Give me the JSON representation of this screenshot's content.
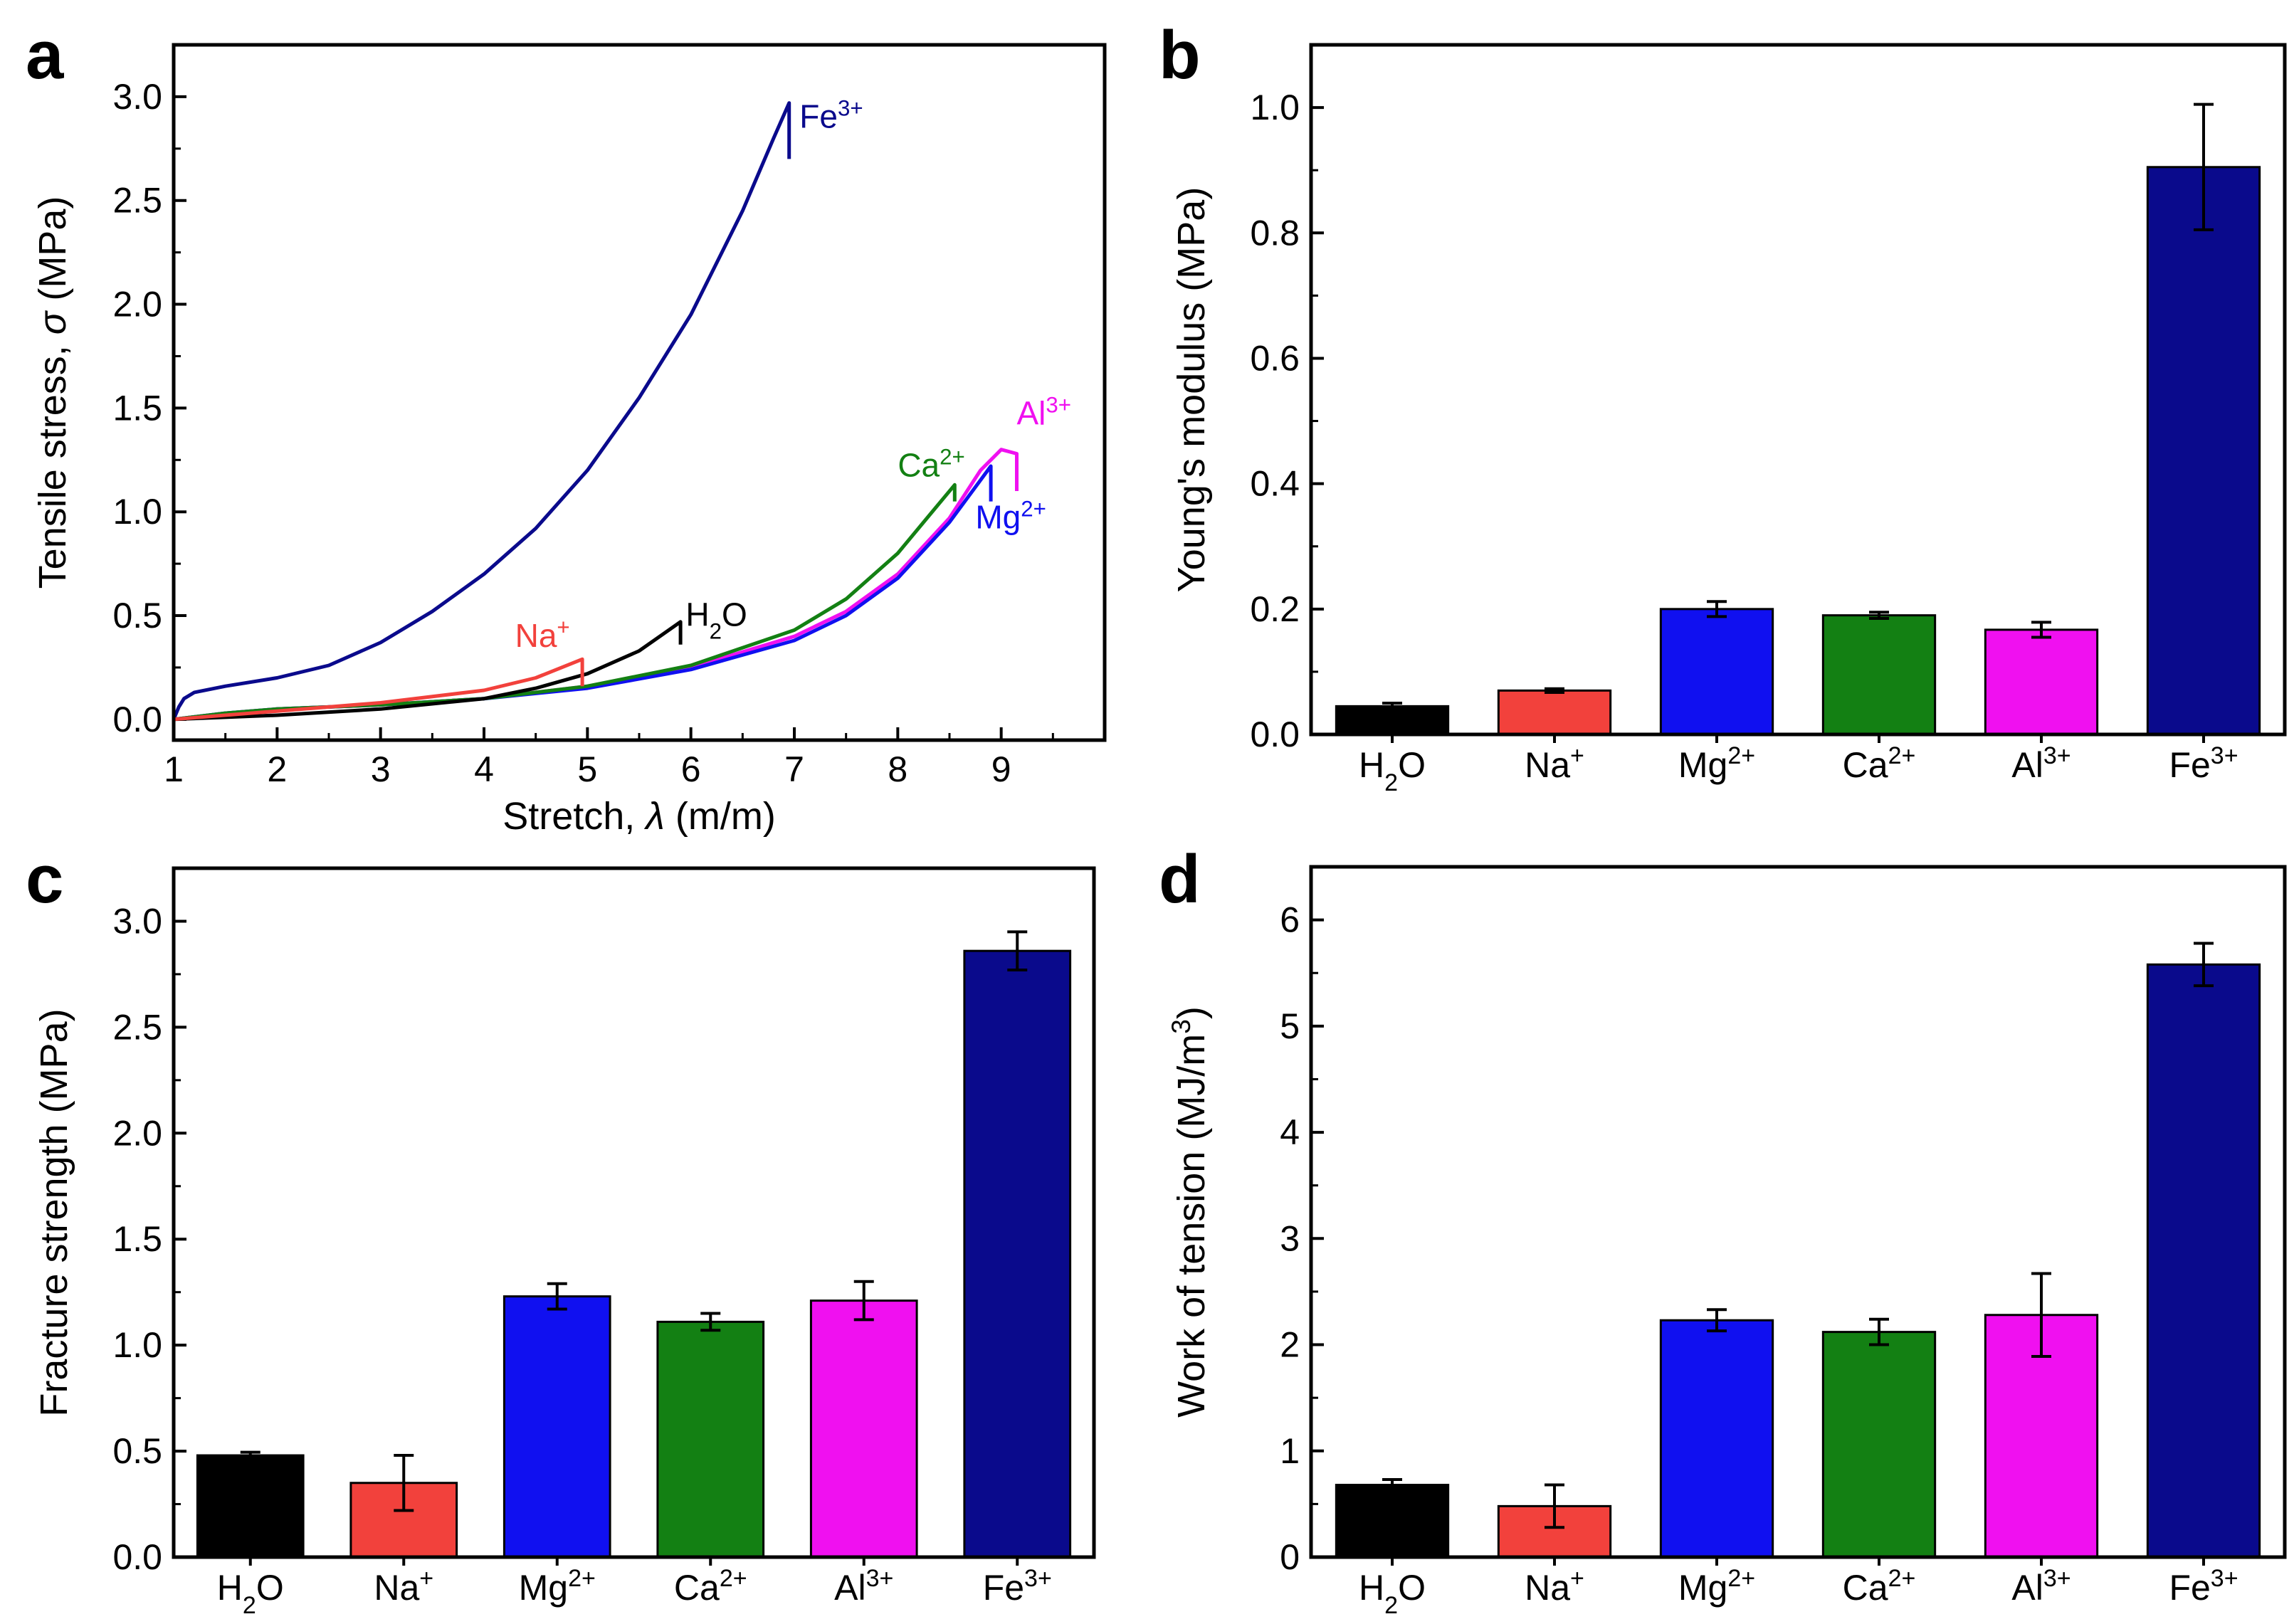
{
  "figure": {
    "colors": {
      "H2O": "#000000",
      "Na": "#f2413c",
      "Mg": "#1010f0",
      "Ca": "#138013",
      "Al": "#f010f0",
      "Fe": "#0a0a8c"
    }
  },
  "chart_data": [
    {
      "panel": "a",
      "type": "line",
      "xlabel_prefix": "Stretch, ",
      "xlabel_symbol": "λ",
      "xlabel_suffix": " (m/m)",
      "ylabel_prefix": "Tensile stress, ",
      "ylabel_symbol": "σ",
      "ylabel_suffix": " (MPa)",
      "xlim": [
        1,
        10
      ],
      "ylim": [
        -0.1,
        3.25
      ],
      "xticks": [
        1,
        2,
        3,
        4,
        5,
        6,
        7,
        8,
        9
      ],
      "xtick_labels": [
        "1",
        "2",
        "3",
        "4",
        "5",
        "6",
        "7",
        "8",
        "9"
      ],
      "yticks": [
        0.0,
        0.5,
        1.0,
        1.5,
        2.0,
        2.5,
        3.0
      ],
      "ytick_labels": [
        "0.0",
        "0.5",
        "1.0",
        "1.5",
        "2.0",
        "2.5",
        "3.0"
      ],
      "series": [
        {
          "key": "Fe",
          "name": "Fe3+",
          "label_base": "Fe",
          "label_sup": "3+",
          "color": "#0a0a8c",
          "x": [
            1.0,
            1.05,
            1.1,
            1.2,
            1.5,
            2.0,
            2.5,
            3.0,
            3.5,
            4.0,
            4.5,
            5.0,
            5.5,
            6.0,
            6.5,
            6.8,
            6.95
          ],
          "y": [
            0.0,
            0.06,
            0.1,
            0.13,
            0.16,
            0.2,
            0.26,
            0.37,
            0.52,
            0.7,
            0.92,
            1.2,
            1.55,
            1.95,
            2.45,
            2.8,
            2.97
          ],
          "drop_to": 2.7,
          "label_at": [
            7.05,
            2.85
          ]
        },
        {
          "key": "Al",
          "name": "Al3+",
          "label_base": "Al",
          "label_sup": "3+",
          "color": "#f010f0",
          "x": [
            1.0,
            1.5,
            2.0,
            3.0,
            4.0,
            5.0,
            6.0,
            7.0,
            7.5,
            8.0,
            8.5,
            8.8,
            9.0,
            9.15
          ],
          "y": [
            0.0,
            0.03,
            0.05,
            0.07,
            0.1,
            0.16,
            0.25,
            0.4,
            0.52,
            0.7,
            0.97,
            1.2,
            1.3,
            1.28
          ],
          "drop_to": 1.1,
          "label_at": [
            9.15,
            1.42
          ]
        },
        {
          "key": "Mg",
          "name": "Mg2+",
          "label_base": "Mg",
          "label_sup": "2+",
          "color": "#1010f0",
          "x": [
            1.0,
            1.5,
            2.0,
            3.0,
            4.0,
            5.0,
            6.0,
            7.0,
            7.5,
            8.0,
            8.5,
            8.9
          ],
          "y": [
            0.0,
            0.03,
            0.05,
            0.07,
            0.1,
            0.15,
            0.24,
            0.38,
            0.5,
            0.68,
            0.95,
            1.22
          ],
          "drop_to": 1.05,
          "label_at": [
            8.75,
            0.92
          ]
        },
        {
          "key": "Ca",
          "name": "Ca2+",
          "label_base": "Ca",
          "label_sup": "2+",
          "color": "#138013",
          "x": [
            1.0,
            1.5,
            2.0,
            3.0,
            4.0,
            5.0,
            6.0,
            7.0,
            7.5,
            8.0,
            8.3,
            8.55
          ],
          "y": [
            0.0,
            0.03,
            0.05,
            0.07,
            0.1,
            0.16,
            0.26,
            0.43,
            0.58,
            0.8,
            0.98,
            1.13
          ],
          "drop_to": 1.05,
          "label_at": [
            8.0,
            1.17
          ]
        },
        {
          "key": "H2O",
          "name": "H2O",
          "label_base": "H",
          "label_sub": "2",
          "label_tail": "O",
          "color": "#000000",
          "x": [
            1.0,
            2.0,
            3.0,
            4.0,
            4.5,
            5.0,
            5.5,
            5.9
          ],
          "y": [
            0.0,
            0.02,
            0.05,
            0.1,
            0.15,
            0.22,
            0.33,
            0.47
          ],
          "drop_to": 0.36,
          "label_at": [
            5.95,
            0.45
          ]
        },
        {
          "key": "Na",
          "name": "Na+",
          "label_base": "Na",
          "label_sup": "+",
          "color": "#f2413c",
          "x": [
            1.0,
            2.0,
            3.0,
            4.0,
            4.5,
            4.95
          ],
          "y": [
            0.0,
            0.04,
            0.08,
            0.14,
            0.2,
            0.29
          ],
          "drop_to": 0.16,
          "label_at": [
            4.3,
            0.35
          ]
        }
      ]
    },
    {
      "panel": "b",
      "type": "bar",
      "ylabel": "Young's modulus (MPa)",
      "ylim": [
        0,
        1.1
      ],
      "yticks": [
        0.0,
        0.2,
        0.4,
        0.6,
        0.8,
        1.0
      ],
      "ytick_labels": [
        "0.0",
        "0.2",
        "0.4",
        "0.6",
        "0.8",
        "1.0"
      ],
      "categories": [
        "H2O",
        "Na+",
        "Mg2+",
        "Ca2+",
        "Al3+",
        "Fe3+"
      ],
      "category_labels": [
        {
          "base": "H",
          "sub": "2",
          "tail": "O"
        },
        {
          "base": "Na",
          "sup": "+"
        },
        {
          "base": "Mg",
          "sup": "2+"
        },
        {
          "base": "Ca",
          "sup": "2+"
        },
        {
          "base": "Al",
          "sup": "3+"
        },
        {
          "base": "Fe",
          "sup": "3+"
        }
      ],
      "values": [
        0.045,
        0.07,
        0.2,
        0.19,
        0.167,
        0.905
      ],
      "errors": [
        0.005,
        0.003,
        0.012,
        0.005,
        0.012,
        0.1
      ],
      "color_keys": [
        "H2O",
        "Na",
        "Mg",
        "Ca",
        "Al",
        "Fe"
      ]
    },
    {
      "panel": "c",
      "type": "bar",
      "ylabel": "Fracture strength (MPa)",
      "ylim": [
        0,
        3.25
      ],
      "yticks": [
        0.0,
        0.5,
        1.0,
        1.5,
        2.0,
        2.5,
        3.0
      ],
      "ytick_labels": [
        "0.0",
        "0.5",
        "1.0",
        "1.5",
        "2.0",
        "2.5",
        "3.0"
      ],
      "categories": [
        "H2O",
        "Na+",
        "Mg2+",
        "Ca2+",
        "Al3+",
        "Fe3+"
      ],
      "category_labels": [
        {
          "base": "H",
          "sub": "2",
          "tail": "O"
        },
        {
          "base": "Na",
          "sup": "+"
        },
        {
          "base": "Mg",
          "sup": "2+"
        },
        {
          "base": "Ca",
          "sup": "2+"
        },
        {
          "base": "Al",
          "sup": "3+"
        },
        {
          "base": "Fe",
          "sup": "3+"
        }
      ],
      "values": [
        0.48,
        0.35,
        1.23,
        1.11,
        1.21,
        2.86
      ],
      "errors": [
        0.015,
        0.13,
        0.06,
        0.04,
        0.09,
        0.09
      ],
      "color_keys": [
        "H2O",
        "Na",
        "Mg",
        "Ca",
        "Al",
        "Fe"
      ]
    },
    {
      "panel": "d",
      "type": "bar",
      "ylabel_prefix": "Work of tension (MJ/m",
      "ylabel_sup": "3",
      "ylabel_suffix": ")",
      "ylim": [
        0,
        6.5
      ],
      "yticks": [
        0,
        1,
        2,
        3,
        4,
        5,
        6
      ],
      "ytick_labels": [
        "0",
        "1",
        "2",
        "3",
        "4",
        "5",
        "6"
      ],
      "categories": [
        "H2O",
        "Na+",
        "Mg2+",
        "Ca2+",
        "Al3+",
        "Fe3+"
      ],
      "category_labels": [
        {
          "base": "H",
          "sub": "2",
          "tail": "O"
        },
        {
          "base": "Na",
          "sup": "+"
        },
        {
          "base": "Mg",
          "sup": "2+"
        },
        {
          "base": "Ca",
          "sup": "2+"
        },
        {
          "base": "Al",
          "sup": "3+"
        },
        {
          "base": "Fe",
          "sup": "3+"
        }
      ],
      "values": [
        0.68,
        0.48,
        2.23,
        2.12,
        2.28,
        5.58
      ],
      "errors": [
        0.05,
        0.2,
        0.1,
        0.12,
        0.39,
        0.2
      ],
      "color_keys": [
        "H2O",
        "Na",
        "Mg",
        "Ca",
        "Al",
        "Fe"
      ]
    }
  ]
}
